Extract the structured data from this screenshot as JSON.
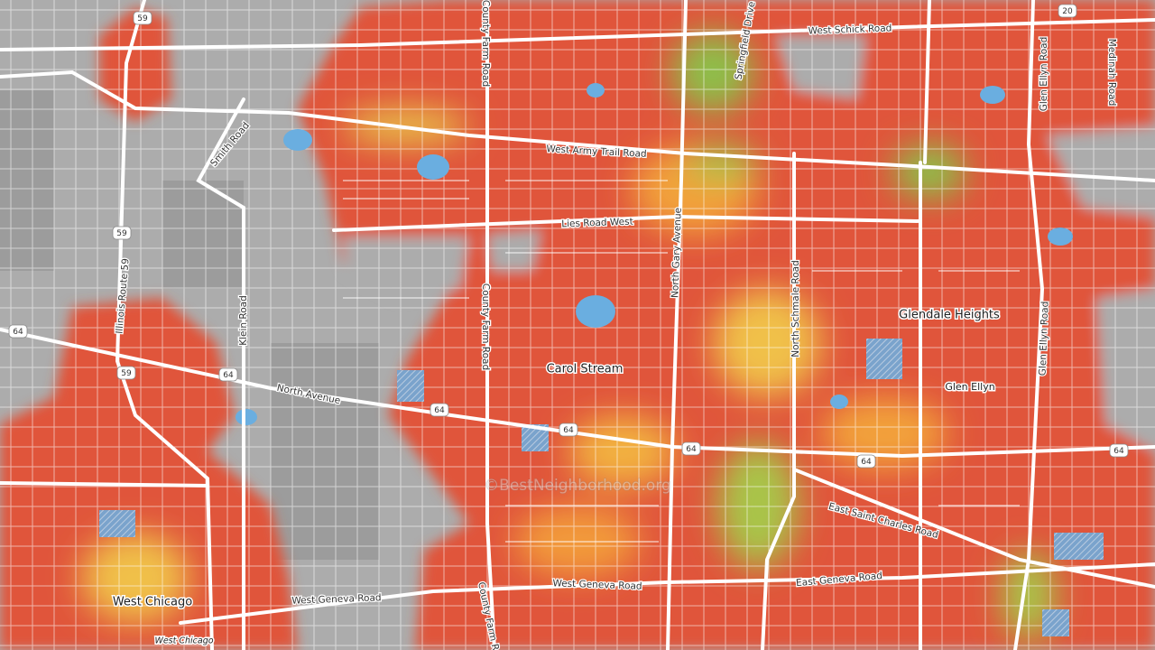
{
  "route_shields": [
    "59",
    "59",
    "59",
    "20",
    "64",
    "64",
    "64",
    "64",
    "64",
    "64",
    "64"
  ],
  "road_labels": [
    "West Schick Road",
    "County Farm Road",
    "Springfield Drive",
    "Medinah Road",
    "Glen Ellyn Road",
    "Smith Road",
    "West Army Trail Road",
    "Lies Road West",
    "North Gary Avenue",
    "County Farm Road",
    "Illinois Route 59",
    "Klein Road",
    "North Schmale Road",
    "Glen Ellyn Road",
    "North Avenue",
    "East Saint Charles Road",
    "East Geneva Road",
    "West Geneva Road",
    "West Geneva Road",
    "County Farm Road"
  ],
  "place_labels": [
    "Carol Stream",
    "Glendale Heights",
    "Glen Ellyn",
    "West Chicago",
    "West Chicago"
  ],
  "watermark": "©BestNeighborhood.org"
}
